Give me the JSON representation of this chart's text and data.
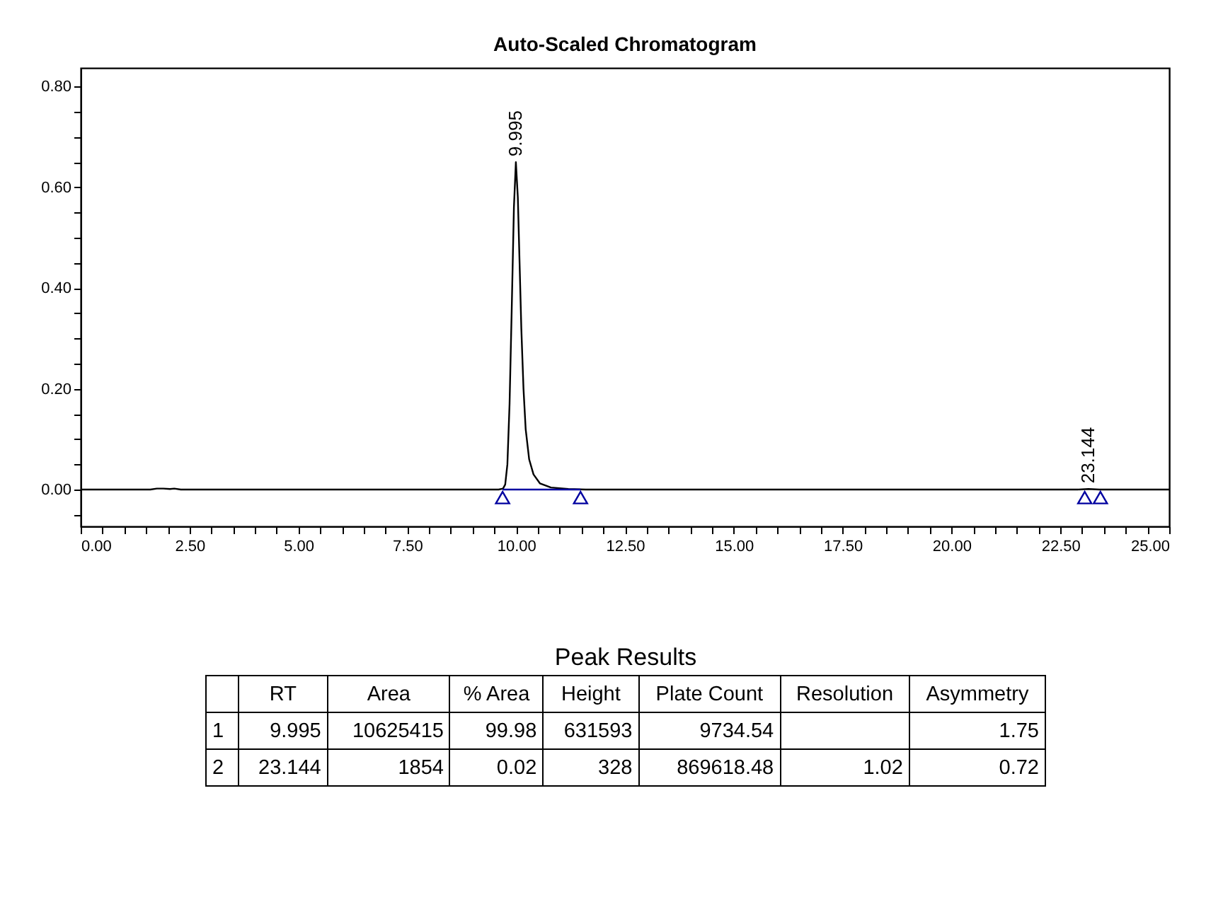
{
  "chart_data": [
    {
      "type": "line",
      "title": "Auto-Scaled Chromatogram",
      "xlim": [
        0,
        25
      ],
      "ylim": [
        -0.073,
        0.837
      ],
      "xticks": [
        {
          "value": 0,
          "label": "0.00"
        },
        {
          "value": 0.5,
          "label": null
        },
        {
          "value": 1,
          "label": null
        },
        {
          "value": 1.5,
          "label": null
        },
        {
          "value": 2,
          "label": null
        },
        {
          "value": 2.5,
          "label": "2.50"
        },
        {
          "value": 3,
          "label": null
        },
        {
          "value": 3.5,
          "label": null
        },
        {
          "value": 4,
          "label": null
        },
        {
          "value": 4.5,
          "label": null
        },
        {
          "value": 5,
          "label": "5.00"
        },
        {
          "value": 5.5,
          "label": null
        },
        {
          "value": 6,
          "label": null
        },
        {
          "value": 6.5,
          "label": null
        },
        {
          "value": 7,
          "label": null
        },
        {
          "value": 7.5,
          "label": "7.50"
        },
        {
          "value": 8,
          "label": null
        },
        {
          "value": 8.5,
          "label": null
        },
        {
          "value": 9,
          "label": null
        },
        {
          "value": 9.5,
          "label": null
        },
        {
          "value": 10,
          "label": "10.00"
        },
        {
          "value": 10.5,
          "label": null
        },
        {
          "value": 11,
          "label": null
        },
        {
          "value": 11.5,
          "label": null
        },
        {
          "value": 12,
          "label": null
        },
        {
          "value": 12.5,
          "label": "12.50"
        },
        {
          "value": 13,
          "label": null
        },
        {
          "value": 13.5,
          "label": null
        },
        {
          "value": 14,
          "label": null
        },
        {
          "value": 14.5,
          "label": null
        },
        {
          "value": 15,
          "label": "15.00"
        },
        {
          "value": 15.5,
          "label": null
        },
        {
          "value": 16,
          "label": null
        },
        {
          "value": 16.5,
          "label": null
        },
        {
          "value": 17,
          "label": null
        },
        {
          "value": 17.5,
          "label": "17.50"
        },
        {
          "value": 18,
          "label": null
        },
        {
          "value": 18.5,
          "label": null
        },
        {
          "value": 19,
          "label": null
        },
        {
          "value": 19.5,
          "label": null
        },
        {
          "value": 20,
          "label": "20.00"
        },
        {
          "value": 20.5,
          "label": null
        },
        {
          "value": 21,
          "label": null
        },
        {
          "value": 21.5,
          "label": null
        },
        {
          "value": 22,
          "label": null
        },
        {
          "value": 22.5,
          "label": "22.50"
        },
        {
          "value": 23,
          "label": null
        },
        {
          "value": 23.5,
          "label": null
        },
        {
          "value": 24,
          "label": null
        },
        {
          "value": 24.5,
          "label": null
        },
        {
          "value": 25,
          "label": "25.00"
        }
      ],
      "yticks": [
        {
          "value": -0.05,
          "label": null
        },
        {
          "value": 0,
          "label": "0.00"
        },
        {
          "value": 0.05,
          "label": null
        },
        {
          "value": 0.1,
          "label": null
        },
        {
          "value": 0.15,
          "label": null
        },
        {
          "value": 0.2,
          "label": "0.20"
        },
        {
          "value": 0.25,
          "label": null
        },
        {
          "value": 0.3,
          "label": null
        },
        {
          "value": 0.35,
          "label": null
        },
        {
          "value": 0.4,
          "label": "0.40"
        },
        {
          "value": 0.45,
          "label": null
        },
        {
          "value": 0.5,
          "label": null
        },
        {
          "value": 0.55,
          "label": null
        },
        {
          "value": 0.6,
          "label": "0.60"
        },
        {
          "value": 0.65,
          "label": null
        },
        {
          "value": 0.7,
          "label": null
        },
        {
          "value": 0.75,
          "label": null
        },
        {
          "value": 0.8,
          "label": "0.80"
        }
      ],
      "series": [
        {
          "type": "line",
          "color": "#000000",
          "marker": "none",
          "x": [
            0,
            1.6,
            1.75,
            1.9,
            2.05,
            2.15,
            2.3,
            6,
            9,
            9.6,
            9.7,
            9.75,
            9.8,
            9.85,
            9.9,
            9.95,
            9.995,
            10.04,
            10.08,
            10.12,
            10.17,
            10.22,
            10.3,
            10.4,
            10.55,
            10.8,
            11.2,
            11.6,
            15,
            20,
            22.9,
            23.144,
            23.4,
            25
          ],
          "values": [
            0,
            0,
            0.002,
            0.002,
            0.001,
            0.002,
            0,
            0,
            0,
            0,
            0.002,
            0.01,
            0.05,
            0.17,
            0.36,
            0.56,
            0.65,
            0.58,
            0.45,
            0.32,
            0.2,
            0.12,
            0.06,
            0.03,
            0.012,
            0.004,
            0.001,
            0,
            0,
            0,
            0,
            0.001,
            0,
            0
          ]
        },
        {
          "type": "line",
          "color": "#0000a0",
          "marker": "none",
          "x": [
            9.69,
            11.48
          ],
          "values": [
            0,
            0
          ]
        },
        {
          "type": "scatter",
          "color": "#0000a0",
          "marker": "triangle",
          "x": [
            9.69,
            11.48,
            23.06,
            23.42
          ],
          "values": [
            -0.016,
            -0.016,
            -0.016,
            -0.016
          ]
        }
      ],
      "annotations": [
        {
          "text": "9.995",
          "x": 9.995,
          "y": 0.65
        },
        {
          "text": "23.144",
          "x": 23.144,
          "y": 0.001
        }
      ]
    },
    {
      "type": "other",
      "title": "Peak Results",
      "categories": [
        null,
        "RT",
        "Area",
        "% Area",
        "Height",
        "Plate Count",
        "Resolution",
        "Asymmetry"
      ],
      "y_categories": [
        "1",
        "2"
      ],
      "cell_labels": [
        [
          "9.995",
          "10625415",
          "99.98",
          "631593",
          "9734.54",
          null,
          "1.75"
        ],
        [
          "23.144",
          "1854",
          "0.02",
          "328",
          "869618.48",
          "1.02",
          "0.72"
        ]
      ]
    }
  ]
}
